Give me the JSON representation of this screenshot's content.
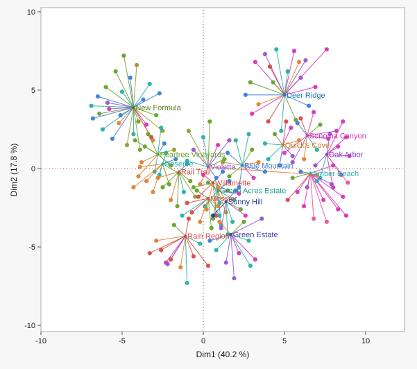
{
  "window": {
    "background": "#f7f7f7"
  },
  "chart_data": {
    "type": "scatter",
    "title": "",
    "xlabel": "Dim1  (40.2 %)",
    "ylabel": "Dim2  (17.8 %)",
    "xlim": [
      -10,
      10
    ],
    "ylim": [
      -10,
      10
    ],
    "xticks": [
      -10,
      -5,
      0,
      5,
      10
    ],
    "yticks": [
      -10,
      -5,
      0,
      5,
      10
    ],
    "grid": false,
    "legend_position": "none",
    "plot_background": "#ffffff",
    "frame_color": "#a8a8a8",
    "tick_label_color": "#1a1a1a",
    "reference_lines": {
      "x": 0,
      "y": 0,
      "color": "#c43c3c",
      "style": "dotted"
    },
    "palette": {
      "b": "#3b7dd8",
      "o": "#e2812e",
      "g": "#67a22c",
      "t": "#27b0a6",
      "m": "#d636b8",
      "p": "#9355d2",
      "r": "#d94a42",
      "l": "#969b2f",
      "n": "#27428f",
      "k": "#e8559a"
    },
    "clusters": [
      {
        "label": "New Formula",
        "label_color": "#5a7d1f",
        "centroid": [
          -4.3,
          3.9
        ],
        "points": [
          [
            -6.8,
            3.2,
            "b"
          ],
          [
            -6.5,
            4.6,
            "b"
          ],
          [
            -6.9,
            4.0,
            "t"
          ],
          [
            -6.2,
            2.5,
            "t"
          ],
          [
            -6.0,
            5.2,
            "g"
          ],
          [
            -5.8,
            3.8,
            "m"
          ],
          [
            -5.6,
            1.9,
            "b"
          ],
          [
            -5.4,
            6.2,
            "g"
          ],
          [
            -5.2,
            2.9,
            "o"
          ],
          [
            -5.0,
            4.9,
            "t"
          ],
          [
            -4.9,
            7.2,
            "g"
          ],
          [
            -4.7,
            1.5,
            "l"
          ],
          [
            -4.5,
            5.8,
            "b"
          ],
          [
            -4.3,
            2.2,
            "t"
          ],
          [
            -4.1,
            6.6,
            "l"
          ],
          [
            -3.9,
            1.2,
            "g"
          ],
          [
            -3.7,
            4.4,
            "b"
          ],
          [
            -3.5,
            2.8,
            "m"
          ],
          [
            -3.3,
            5.4,
            "t"
          ],
          [
            -3.1,
            1.8,
            "o"
          ],
          [
            -2.9,
            3.4,
            "g"
          ],
          [
            -2.7,
            4.8,
            "b"
          ],
          [
            -2.5,
            2.4,
            "l"
          ],
          [
            -5.9,
            4.2,
            "p"
          ],
          [
            -6.4,
            3.5,
            "g"
          ],
          [
            -4.0,
            3.0,
            "g"
          ],
          [
            -3.2,
            2.0,
            "r"
          ],
          [
            -5.1,
            3.4,
            "b"
          ]
        ]
      },
      {
        "label": "Deer Ridge",
        "label_color": "#2277bb",
        "centroid": [
          5.0,
          4.7
        ],
        "points": [
          [
            3.2,
            6.8,
            "m"
          ],
          [
            3.8,
            7.3,
            "p"
          ],
          [
            4.5,
            7.6,
            "t"
          ],
          [
            5.6,
            7.5,
            "m"
          ],
          [
            6.3,
            6.9,
            "p"
          ],
          [
            2.9,
            5.5,
            "g"
          ],
          [
            3.4,
            4.1,
            "o"
          ],
          [
            4.0,
            3.0,
            "r"
          ],
          [
            4.8,
            2.4,
            "t"
          ],
          [
            5.7,
            3.1,
            "g"
          ],
          [
            6.5,
            4.0,
            "b"
          ],
          [
            6.9,
            5.2,
            "m"
          ],
          [
            2.6,
            4.7,
            "b"
          ],
          [
            5.2,
            6.2,
            "t"
          ],
          [
            4.3,
            5.5,
            "g"
          ],
          [
            6.0,
            5.8,
            "p"
          ],
          [
            3.0,
            3.5,
            "m"
          ],
          [
            7.6,
            7.6,
            "m"
          ],
          [
            4.1,
            6.5,
            "r"
          ],
          [
            5.9,
            6.8,
            "o"
          ]
        ]
      },
      {
        "label": "Sonoma Canyon",
        "label_color": "#d636b8",
        "centroid": [
          6.4,
          2.1
        ],
        "points": [
          [
            5.0,
            1.0,
            "m"
          ],
          [
            5.5,
            0.4,
            "p"
          ],
          [
            6.0,
            3.2,
            "r"
          ],
          [
            6.8,
            3.6,
            "m"
          ],
          [
            7.2,
            2.8,
            "g"
          ],
          [
            7.7,
            1.9,
            "m"
          ],
          [
            7.0,
            1.2,
            "t"
          ],
          [
            6.2,
            0.6,
            "o"
          ],
          [
            8.2,
            2.4,
            "m"
          ],
          [
            5.8,
            2.9,
            "b"
          ]
        ]
      },
      {
        "label": "Oak Arbor",
        "label_color": "#8a3fc9",
        "centroid": [
          7.6,
          0.9
        ],
        "points": [
          [
            8.8,
            2.0,
            "m"
          ],
          [
            9.0,
            0.8,
            "m"
          ],
          [
            8.5,
            -0.4,
            "p"
          ],
          [
            8.0,
            -1.2,
            "m"
          ],
          [
            7.2,
            -0.6,
            "t"
          ],
          [
            6.9,
            0.2,
            "p"
          ],
          [
            8.3,
            1.4,
            "m"
          ],
          [
            8.9,
            -0.9,
            "k"
          ],
          [
            7.8,
            2.2,
            "p"
          ],
          [
            8.6,
            3.0,
            "m"
          ]
        ]
      },
      {
        "label": "Quick's Cove",
        "label_color": "#cc7a22",
        "centroid": [
          4.9,
          1.5
        ],
        "points": [
          [
            4.0,
            0.6,
            "t"
          ],
          [
            4.4,
            2.2,
            "g"
          ],
          [
            5.4,
            2.6,
            "m"
          ],
          [
            5.9,
            1.8,
            "o"
          ],
          [
            5.5,
            0.8,
            "p"
          ],
          [
            4.7,
            0.2,
            "b"
          ],
          [
            3.8,
            1.6,
            "t"
          ],
          [
            5.1,
            3.0,
            "r"
          ]
        ]
      },
      {
        "label": "Amber Beach",
        "label_color": "#27b0a6",
        "centroid": [
          6.6,
          -0.3
        ],
        "points": [
          [
            5.8,
            -1.5,
            "m"
          ],
          [
            6.2,
            -2.4,
            "m"
          ],
          [
            6.8,
            -3.2,
            "k"
          ],
          [
            7.4,
            -2.0,
            "m"
          ],
          [
            7.9,
            -1.0,
            "p"
          ],
          [
            8.3,
            -2.6,
            "m"
          ],
          [
            7.0,
            -0.8,
            "t"
          ],
          [
            5.5,
            -0.6,
            "g"
          ],
          [
            8.6,
            -1.8,
            "m"
          ],
          [
            7.6,
            -3.4,
            "k"
          ],
          [
            6.4,
            -1.2,
            "p"
          ],
          [
            8.0,
            0.2,
            "m"
          ],
          [
            8.8,
            -3.0,
            "m"
          ],
          [
            5.2,
            -2.0,
            "r"
          ],
          [
            6.0,
            -0.2,
            "b"
          ]
        ]
      },
      {
        "label": "Peartree Vineyards",
        "label_color": "#67a22c",
        "centroid": [
          -2.8,
          0.9
        ],
        "points": [
          [
            -4.2,
            1.8,
            "g"
          ],
          [
            -3.8,
            0.4,
            "o"
          ],
          [
            -3.4,
            2.2,
            "g"
          ],
          [
            -3.0,
            -0.2,
            "t"
          ],
          [
            -2.4,
            1.6,
            "b"
          ],
          [
            -2.0,
            0.2,
            "g"
          ],
          [
            -1.8,
            1.2,
            "l"
          ],
          [
            -3.6,
            1.4,
            "g"
          ],
          [
            -4.0,
            -0.5,
            "o"
          ],
          [
            -2.6,
            2.6,
            "t"
          ]
        ]
      },
      {
        "label": "Reserve",
        "label_color": "#27b0a6",
        "centroid": [
          -2.5,
          0.3
        ],
        "points": [
          [
            -3.5,
            -0.8,
            "o"
          ],
          [
            -3.1,
            -1.5,
            "o"
          ],
          [
            -2.7,
            -0.4,
            "t"
          ],
          [
            -2.1,
            -1.0,
            "g"
          ],
          [
            -1.7,
            0.6,
            "b"
          ],
          [
            -2.3,
            1.0,
            "t"
          ],
          [
            -3.9,
            0.1,
            "o"
          ],
          [
            -1.5,
            -0.3,
            "g"
          ],
          [
            -4.3,
            -1.2,
            "o"
          ]
        ]
      },
      {
        "label": "Rail Trail",
        "label_color": "#d94a42",
        "centroid": [
          -1.5,
          -0.2
        ],
        "points": [
          [
            -2.5,
            -1.2,
            "g"
          ],
          [
            -2.0,
            -2.0,
            "o"
          ],
          [
            -1.2,
            -1.5,
            "t"
          ],
          [
            -0.8,
            -0.8,
            "g"
          ],
          [
            -1.0,
            0.3,
            "b"
          ],
          [
            -2.8,
            -0.6,
            "o"
          ],
          [
            -0.5,
            -1.8,
            "l"
          ],
          [
            -1.6,
            -2.4,
            "g"
          ]
        ]
      },
      {
        "label": "Violetta",
        "label_color": "#9355d2",
        "centroid": [
          0.3,
          0.1
        ],
        "points": [
          [
            -0.6,
            1.2,
            "p"
          ],
          [
            0.0,
            2.0,
            "t"
          ],
          [
            0.9,
            1.5,
            "m"
          ],
          [
            1.3,
            0.6,
            "g"
          ],
          [
            0.8,
            -0.6,
            "b"
          ],
          [
            -0.2,
            -1.0,
            "o"
          ],
          [
            -1.0,
            0.5,
            "t"
          ],
          [
            1.6,
            1.8,
            "p"
          ],
          [
            0.4,
            3.0,
            "g"
          ],
          [
            -0.9,
            2.4,
            "l"
          ],
          [
            7.0,
            -0.4,
            "o"
          ]
        ]
      },
      {
        "label": "Blue Mountain",
        "label_color": "#3b7dd8",
        "centroid": [
          2.4,
          0.2
        ],
        "points": [
          [
            1.5,
            1.0,
            "b"
          ],
          [
            2.0,
            1.8,
            "t"
          ],
          [
            3.0,
            1.2,
            "g"
          ],
          [
            3.4,
            0.4,
            "o"
          ],
          [
            3.1,
            -0.6,
            "m"
          ],
          [
            2.2,
            -1.2,
            "b"
          ],
          [
            1.6,
            -0.5,
            "g"
          ],
          [
            2.8,
            2.2,
            "t"
          ],
          [
            3.8,
            -0.2,
            "b"
          ],
          [
            1.2,
            0.4,
            "l"
          ]
        ]
      },
      {
        "label": "Willamette",
        "label_color": "#d94a42",
        "centroid": [
          0.6,
          -0.9
        ],
        "points": [
          [
            -0.3,
            -1.8,
            "r"
          ],
          [
            0.2,
            -2.6,
            "o"
          ],
          [
            1.0,
            -2.2,
            "t"
          ],
          [
            1.5,
            -1.4,
            "g"
          ],
          [
            1.2,
            -0.2,
            "b"
          ],
          [
            0.0,
            -0.4,
            "m"
          ],
          [
            -0.6,
            -1.2,
            "g"
          ],
          [
            0.8,
            -3.0,
            "r"
          ]
        ]
      },
      {
        "label": "Green Acres Estate",
        "label_color": "#1f9e8e",
        "centroid": [
          0.9,
          -1.4
        ],
        "points": [
          [
            0.1,
            -2.4,
            "t"
          ],
          [
            0.6,
            -3.2,
            "g"
          ],
          [
            1.4,
            -2.8,
            "o"
          ],
          [
            1.9,
            -2.0,
            "t"
          ],
          [
            1.6,
            -0.8,
            "b"
          ],
          [
            0.3,
            -0.9,
            "g"
          ],
          [
            2.2,
            -1.6,
            "m"
          ],
          [
            1.1,
            -3.6,
            "t"
          ]
        ]
      },
      {
        "label": "Mossier",
        "label_color": "#d94a42",
        "centroid": [
          0.3,
          -1.9
        ],
        "points": [
          [
            -0.7,
            -2.8,
            "r"
          ],
          [
            -0.2,
            -3.4,
            "o"
          ],
          [
            0.5,
            -3.8,
            "g"
          ],
          [
            1.0,
            -3.0,
            "t"
          ],
          [
            -1.0,
            -2.2,
            "r"
          ],
          [
            -0.4,
            -1.4,
            "g"
          ],
          [
            0.9,
            -2.4,
            "o"
          ],
          [
            -1.3,
            -3.0,
            "t"
          ]
        ]
      },
      {
        "label": "Sunny Hill",
        "label_color": "#27428f",
        "centroid": [
          1.4,
          -2.1
        ],
        "points": [
          [
            0.6,
            -3.0,
            "n"
          ],
          [
            1.1,
            -3.8,
            "p"
          ],
          [
            1.8,
            -3.4,
            "t"
          ],
          [
            2.3,
            -2.6,
            "g"
          ],
          [
            2.0,
            -1.4,
            "b"
          ],
          [
            0.9,
            -1.2,
            "o"
          ],
          [
            2.6,
            -3.0,
            "m"
          ],
          [
            1.5,
            -4.2,
            "t"
          ]
        ]
      },
      {
        "label": "Rain Region",
        "label_color": "#d94a42",
        "centroid": [
          -1.1,
          -4.3
        ],
        "points": [
          [
            -2.6,
            -5.2,
            "r"
          ],
          [
            -2.0,
            -5.8,
            "r"
          ],
          [
            -1.4,
            -6.3,
            "o"
          ],
          [
            -0.6,
            -5.6,
            "r"
          ],
          [
            -2.9,
            -4.6,
            "o"
          ],
          [
            -0.2,
            -4.8,
            "t"
          ],
          [
            -1.8,
            -3.6,
            "g"
          ],
          [
            -0.9,
            -3.2,
            "r"
          ],
          [
            -2.3,
            -6.0,
            "m"
          ],
          [
            -3.3,
            -5.4,
            "r"
          ],
          [
            -1.0,
            -7.3,
            "t"
          ],
          [
            0.3,
            -6.2,
            "r"
          ],
          [
            -2.2,
            -6.1,
            "p"
          ]
        ]
      },
      {
        "label": "Green Estate",
        "label_color": "#3f3f9f",
        "centroid": [
          1.7,
          -4.2
        ],
        "points": [
          [
            0.8,
            -5.2,
            "t"
          ],
          [
            1.4,
            -6.0,
            "p"
          ],
          [
            2.2,
            -5.4,
            "m"
          ],
          [
            2.8,
            -4.6,
            "t"
          ],
          [
            2.5,
            -3.4,
            "g"
          ],
          [
            1.0,
            -3.4,
            "o"
          ],
          [
            3.2,
            -5.8,
            "m"
          ],
          [
            1.9,
            -7.0,
            "p"
          ],
          [
            2.9,
            -6.2,
            "t"
          ],
          [
            0.4,
            -4.6,
            "b"
          ],
          [
            3.6,
            -3.2,
            "p"
          ]
        ]
      }
    ]
  }
}
